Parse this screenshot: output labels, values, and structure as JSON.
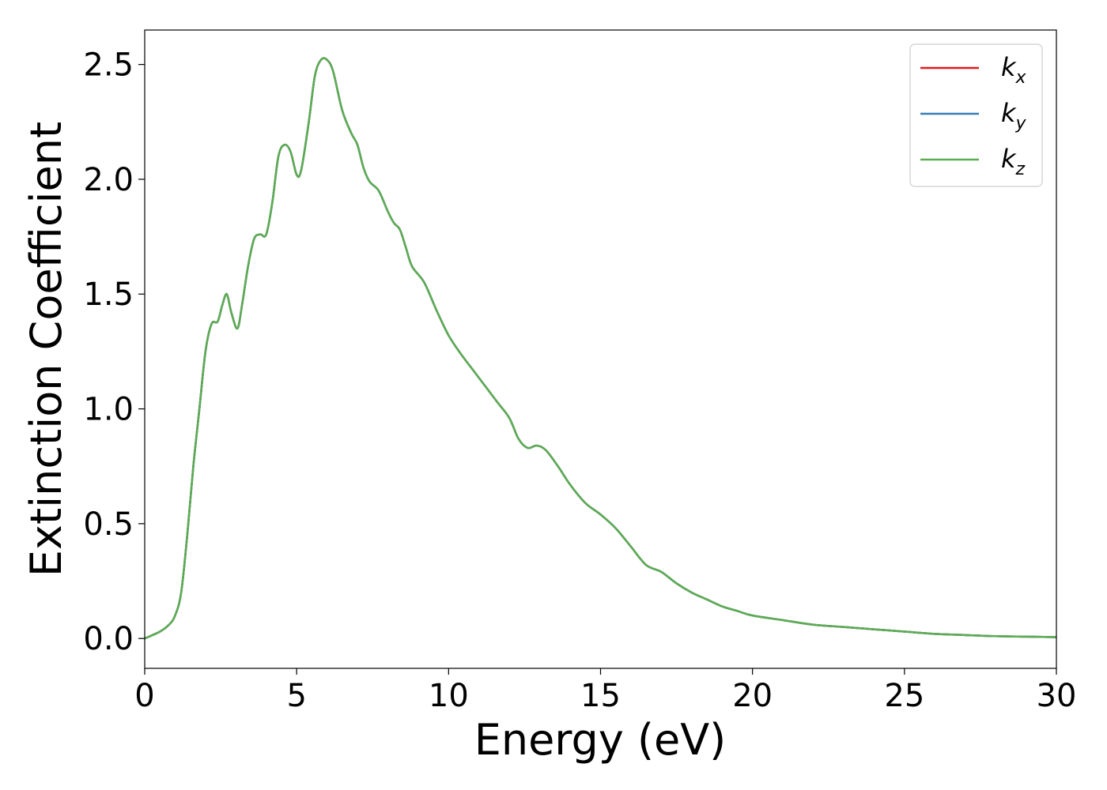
{
  "chart_data": {
    "type": "line",
    "xlabel": "Energy (eV)",
    "ylabel": "Extinction Coefficient",
    "xlim": [
      0,
      30
    ],
    "ylim": [
      -0.13,
      2.65
    ],
    "x_ticks": [
      0,
      5,
      10,
      15,
      20,
      25,
      30
    ],
    "x_tick_labels": [
      "0",
      "5",
      "10",
      "15",
      "20",
      "25",
      "30"
    ],
    "y_ticks": [
      0.0,
      0.5,
      1.0,
      1.5,
      2.0,
      2.5
    ],
    "y_tick_labels": [
      "0.0",
      "0.5",
      "1.0",
      "1.5",
      "2.0",
      "2.5"
    ],
    "grid": false,
    "legend_position": "top-right",
    "x": [
      0,
      0.5,
      0.8,
      1.0,
      1.2,
      1.4,
      1.6,
      1.8,
      2.0,
      2.2,
      2.4,
      2.55,
      2.7,
      2.85,
      3.05,
      3.2,
      3.4,
      3.6,
      3.8,
      4.0,
      4.2,
      4.4,
      4.6,
      4.8,
      5.0,
      5.15,
      5.4,
      5.6,
      5.8,
      6.0,
      6.2,
      6.5,
      6.8,
      7.0,
      7.2,
      7.4,
      7.7,
      8.0,
      8.2,
      8.4,
      8.6,
      8.8,
      9.2,
      9.6,
      10.0,
      10.4,
      10.8,
      11.2,
      11.6,
      12.0,
      12.3,
      12.6,
      12.9,
      13.2,
      13.6,
      14.0,
      14.5,
      15.0,
      15.5,
      16.0,
      16.5,
      17.0,
      17.5,
      18.0,
      18.5,
      19.0,
      19.5,
      20.0,
      21.0,
      22.0,
      23.0,
      24.0,
      25.0,
      26.0,
      27.0,
      28.0,
      29.0,
      30.0
    ],
    "series": [
      {
        "name": "k_x",
        "label_base": "k",
        "label_sub": "x",
        "color": "#e41a1c",
        "values": [
          0.0,
          0.03,
          0.06,
          0.1,
          0.2,
          0.45,
          0.75,
          1.0,
          1.25,
          1.37,
          1.38,
          1.45,
          1.5,
          1.42,
          1.35,
          1.45,
          1.62,
          1.74,
          1.76,
          1.76,
          1.9,
          2.1,
          2.15,
          2.12,
          2.02,
          2.04,
          2.25,
          2.45,
          2.52,
          2.52,
          2.47,
          2.3,
          2.2,
          2.15,
          2.05,
          1.99,
          1.95,
          1.86,
          1.81,
          1.78,
          1.7,
          1.62,
          1.55,
          1.43,
          1.32,
          1.24,
          1.17,
          1.1,
          1.03,
          0.96,
          0.87,
          0.83,
          0.84,
          0.82,
          0.75,
          0.67,
          0.59,
          0.54,
          0.48,
          0.4,
          0.32,
          0.29,
          0.24,
          0.2,
          0.17,
          0.14,
          0.12,
          0.1,
          0.08,
          0.06,
          0.05,
          0.04,
          0.03,
          0.02,
          0.015,
          0.01,
          0.008,
          0.006
        ]
      },
      {
        "name": "k_y",
        "label_base": "k",
        "label_sub": "y",
        "color": "#377eb8",
        "values": [
          0.0,
          0.03,
          0.06,
          0.1,
          0.2,
          0.45,
          0.75,
          1.0,
          1.25,
          1.37,
          1.38,
          1.45,
          1.5,
          1.42,
          1.35,
          1.45,
          1.62,
          1.74,
          1.76,
          1.76,
          1.9,
          2.1,
          2.15,
          2.12,
          2.02,
          2.04,
          2.25,
          2.45,
          2.52,
          2.52,
          2.47,
          2.3,
          2.2,
          2.15,
          2.05,
          1.99,
          1.95,
          1.86,
          1.81,
          1.78,
          1.7,
          1.62,
          1.55,
          1.43,
          1.32,
          1.24,
          1.17,
          1.1,
          1.03,
          0.96,
          0.87,
          0.83,
          0.84,
          0.82,
          0.75,
          0.67,
          0.59,
          0.54,
          0.48,
          0.4,
          0.32,
          0.29,
          0.24,
          0.2,
          0.17,
          0.14,
          0.12,
          0.1,
          0.08,
          0.06,
          0.05,
          0.04,
          0.03,
          0.02,
          0.015,
          0.01,
          0.008,
          0.006
        ]
      },
      {
        "name": "k_z",
        "label_base": "k",
        "label_sub": "z",
        "color": "#5aad52",
        "values": [
          0.0,
          0.03,
          0.06,
          0.1,
          0.2,
          0.45,
          0.75,
          1.0,
          1.25,
          1.37,
          1.38,
          1.45,
          1.5,
          1.42,
          1.35,
          1.45,
          1.62,
          1.74,
          1.76,
          1.76,
          1.9,
          2.1,
          2.15,
          2.12,
          2.02,
          2.04,
          2.25,
          2.45,
          2.52,
          2.52,
          2.47,
          2.3,
          2.2,
          2.15,
          2.05,
          1.99,
          1.95,
          1.86,
          1.81,
          1.78,
          1.7,
          1.62,
          1.55,
          1.43,
          1.32,
          1.24,
          1.17,
          1.1,
          1.03,
          0.96,
          0.87,
          0.83,
          0.84,
          0.82,
          0.75,
          0.67,
          0.59,
          0.54,
          0.48,
          0.4,
          0.32,
          0.29,
          0.24,
          0.2,
          0.17,
          0.14,
          0.12,
          0.1,
          0.08,
          0.06,
          0.05,
          0.04,
          0.03,
          0.02,
          0.015,
          0.01,
          0.008,
          0.006
        ]
      }
    ]
  }
}
